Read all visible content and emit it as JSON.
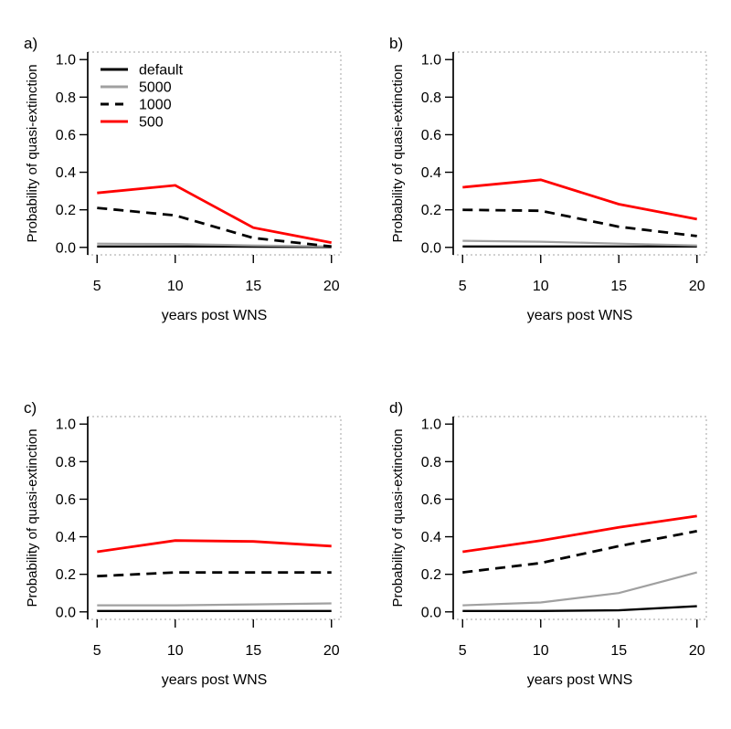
{
  "figure": {
    "background": "#FFFFFF",
    "axis_color": "#000000",
    "box_color": "#A3A3A3",
    "text_color": "#000000"
  },
  "series_styles": {
    "default": {
      "color": "#000000",
      "dash": "none",
      "width": 2.4
    },
    "5000": {
      "color": "#A0A0A0",
      "dash": "none",
      "width": 2.2
    },
    "1000": {
      "color": "#000000",
      "dash": "11 7",
      "width": 2.8
    },
    "500": {
      "color": "#FF0000",
      "dash": "none",
      "width": 2.8
    }
  },
  "legend": {
    "entries": [
      {
        "label": "default",
        "series": "default"
      },
      {
        "label": "5000",
        "series": "5000"
      },
      {
        "label": "1000",
        "series": "1000"
      },
      {
        "label": "500",
        "series": "500"
      }
    ]
  },
  "chart_data": [
    {
      "type": "line",
      "panel_label": "a)",
      "xlabel": "years post WNS",
      "ylabel": "Probability of quasi-extinction",
      "x": [
        5,
        10,
        15,
        20
      ],
      "xticks": [
        "5",
        "10",
        "15",
        "20"
      ],
      "xtick_values": [
        5,
        10,
        15,
        20
      ],
      "yticks": [
        "0.0",
        "0.2",
        "0.4",
        "0.6",
        "0.8",
        "1.0"
      ],
      "ytick_values": [
        0,
        0.2,
        0.4,
        0.6,
        0.8,
        1.0
      ],
      "xlim": [
        5,
        20
      ],
      "ylim": [
        0,
        1
      ],
      "grid": false,
      "legend": true,
      "series": [
        {
          "name": "default",
          "values": [
            0.005,
            0.005,
            0.004,
            0.002
          ]
        },
        {
          "name": "5000",
          "values": [
            0.02,
            0.018,
            0.01,
            0.005
          ]
        },
        {
          "name": "1000",
          "values": [
            0.21,
            0.17,
            0.05,
            0.005
          ]
        },
        {
          "name": "500",
          "values": [
            0.29,
            0.33,
            0.105,
            0.025
          ]
        }
      ]
    },
    {
      "type": "line",
      "panel_label": "b)",
      "xlabel": "years post WNS",
      "ylabel": "Probability of quasi-extinction",
      "x": [
        5,
        10,
        15,
        20
      ],
      "xticks": [
        "5",
        "10",
        "15",
        "20"
      ],
      "xtick_values": [
        5,
        10,
        15,
        20
      ],
      "yticks": [
        "0.0",
        "0.2",
        "0.4",
        "0.6",
        "0.8",
        "1.0"
      ],
      "ytick_values": [
        0,
        0.2,
        0.4,
        0.6,
        0.8,
        1.0
      ],
      "xlim": [
        5,
        20
      ],
      "ylim": [
        0,
        1
      ],
      "grid": false,
      "legend": false,
      "series": [
        {
          "name": "default",
          "values": [
            0.005,
            0.005,
            0.005,
            0.005
          ]
        },
        {
          "name": "5000",
          "values": [
            0.035,
            0.03,
            0.02,
            0.01
          ]
        },
        {
          "name": "1000",
          "values": [
            0.2,
            0.195,
            0.11,
            0.06
          ]
        },
        {
          "name": "500",
          "values": [
            0.32,
            0.36,
            0.23,
            0.15
          ]
        }
      ]
    },
    {
      "type": "line",
      "panel_label": "c)",
      "xlabel": "years post WNS",
      "ylabel": "Probability of quasi-extinction",
      "x": [
        5,
        10,
        15,
        20
      ],
      "xticks": [
        "5",
        "10",
        "15",
        "20"
      ],
      "xtick_values": [
        5,
        10,
        15,
        20
      ],
      "yticks": [
        "0.0",
        "0.2",
        "0.4",
        "0.6",
        "0.8",
        "1.0"
      ],
      "ytick_values": [
        0,
        0.2,
        0.4,
        0.6,
        0.8,
        1.0
      ],
      "xlim": [
        5,
        20
      ],
      "ylim": [
        0,
        1
      ],
      "grid": false,
      "legend": false,
      "series": [
        {
          "name": "default",
          "values": [
            0.005,
            0.005,
            0.005,
            0.005
          ]
        },
        {
          "name": "5000",
          "values": [
            0.035,
            0.035,
            0.04,
            0.045
          ]
        },
        {
          "name": "1000",
          "values": [
            0.19,
            0.21,
            0.21,
            0.21
          ]
        },
        {
          "name": "500",
          "values": [
            0.32,
            0.38,
            0.375,
            0.35
          ]
        }
      ]
    },
    {
      "type": "line",
      "panel_label": "d)",
      "xlabel": "years post WNS",
      "ylabel": "Probability of quasi-extinction",
      "x": [
        5,
        10,
        15,
        20
      ],
      "xticks": [
        "5",
        "10",
        "15",
        "20"
      ],
      "xtick_values": [
        5,
        10,
        15,
        20
      ],
      "yticks": [
        "0.0",
        "0.2",
        "0.4",
        "0.6",
        "0.8",
        "1.0"
      ],
      "ytick_values": [
        0,
        0.2,
        0.4,
        0.6,
        0.8,
        1.0
      ],
      "xlim": [
        5,
        20
      ],
      "ylim": [
        0,
        1
      ],
      "grid": false,
      "legend": false,
      "series": [
        {
          "name": "default",
          "values": [
            0.005,
            0.005,
            0.008,
            0.03
          ]
        },
        {
          "name": "5000",
          "values": [
            0.035,
            0.05,
            0.1,
            0.21
          ]
        },
        {
          "name": "1000",
          "values": [
            0.21,
            0.26,
            0.35,
            0.43
          ]
        },
        {
          "name": "500",
          "values": [
            0.32,
            0.38,
            0.45,
            0.51
          ]
        }
      ]
    }
  ]
}
